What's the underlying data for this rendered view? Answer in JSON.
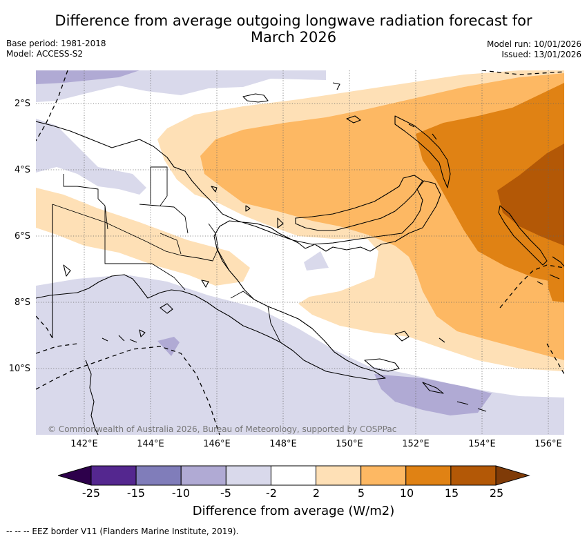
{
  "title": {
    "line1": "Difference from average outgoing longwave radiation forecast for",
    "line2": "March 2026"
  },
  "meta": {
    "base_period": "Base period: 1981-2018",
    "model": "Model: ACCESS-S2",
    "model_run": "Model run: 10/01/2026",
    "issued": "Issued: 13/01/2026"
  },
  "map": {
    "x_ticks": [
      "142°E",
      "144°E",
      "146°E",
      "148°E",
      "150°E",
      "152°E",
      "154°E",
      "156°E"
    ],
    "y_ticks": [
      "2°S",
      "4°S",
      "6°S",
      "8°S",
      "10°S"
    ],
    "copyright": "© Commonwealth of Australia 2026, Bureau of Meteorology, supported by COSPPac",
    "colors": {
      "neg_25_15": "#54278f",
      "neg_15_10": "#807dba",
      "neg_10_5": "#b0aad4",
      "neg_5_2": "#d9d9eb",
      "neutral": "#ffffff",
      "pos_2_5": "#fee0b6",
      "pos_5_10": "#fdb863",
      "pos_10_15": "#e08214",
      "pos_15_25": "#b35806"
    }
  },
  "colorbar": {
    "ticks": [
      "-25",
      "-15",
      "-10",
      "-5",
      "-2",
      "2",
      "5",
      "10",
      "15",
      "25"
    ],
    "label": "Difference from average (W/m2)",
    "segment_colors": [
      "#54278f",
      "#807dba",
      "#b0aad4",
      "#d9d9eb",
      "#ffffff",
      "#fee0b6",
      "#fdb863",
      "#e08214",
      "#b35806"
    ],
    "under_color": "#2d004b",
    "over_color": "#7f3b08"
  },
  "legend": {
    "eez_line": "-- -- -- EEZ border V11 (Flanders Marine Institute, 2019)."
  }
}
